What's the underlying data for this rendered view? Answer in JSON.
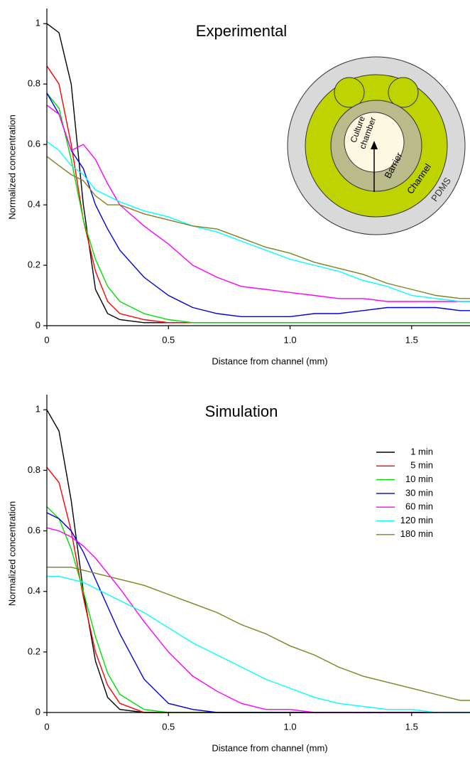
{
  "chart_data": [
    {
      "type": "line",
      "title": "Experimental",
      "xlabel": "Distance from channel (mm)",
      "ylabel": "Normalized concentration",
      "x": [
        0,
        0.05,
        0.1,
        0.15,
        0.2,
        0.25,
        0.3,
        0.4,
        0.5,
        0.6,
        0.7,
        0.8,
        0.9,
        1.0,
        1.1,
        1.2,
        1.3,
        1.4,
        1.5,
        1.6,
        1.7,
        1.74
      ],
      "xlim": [
        0,
        1.74
      ],
      "xticks": [
        0,
        0.5,
        {
          "value": 1.0,
          "label": "1.0"
        },
        1.5
      ],
      "ylim": [
        0,
        1.05
      ],
      "yticks": [
        0,
        0.2,
        0.4,
        0.6,
        0.8,
        1
      ],
      "inset": {
        "chamber": [
          "Culture",
          "chamber"
        ],
        "barrier": "Barrier",
        "channel": "Channel",
        "pdms": "PDMS"
      },
      "series": [
        {
          "color": "#000000",
          "values": [
            1.0,
            0.97,
            0.8,
            0.4,
            0.12,
            0.04,
            0.02,
            0.01,
            0.01,
            0.01,
            0.01,
            0.01,
            0.01,
            0.01,
            0.01,
            0.01,
            0.01,
            0.01,
            0.01,
            0.01,
            0.01,
            0.01
          ]
        },
        {
          "color": "#ff0000",
          "values": [
            0.86,
            0.8,
            0.6,
            0.35,
            0.18,
            0.08,
            0.04,
            0.02,
            0.01,
            0.01,
            0.01,
            0.01,
            0.01,
            0.01,
            0.01,
            0.01,
            0.01,
            0.01,
            0.01,
            0.01,
            0.01,
            0.01
          ]
        },
        {
          "color": "#00dd00",
          "values": [
            0.77,
            0.72,
            0.55,
            0.35,
            0.22,
            0.13,
            0.08,
            0.04,
            0.02,
            0.01,
            0.01,
            0.01,
            0.01,
            0.01,
            0.01,
            0.01,
            0.01,
            0.01,
            0.01,
            0.01,
            0.01,
            0.01
          ]
        },
        {
          "color": "#0000dd",
          "values": [
            0.77,
            0.7,
            0.58,
            0.52,
            0.4,
            0.32,
            0.25,
            0.16,
            0.1,
            0.06,
            0.04,
            0.03,
            0.03,
            0.03,
            0.04,
            0.04,
            0.05,
            0.06,
            0.06,
            0.06,
            0.05,
            0.05
          ]
        },
        {
          "color": "#ff00ff",
          "values": [
            0.73,
            0.7,
            0.58,
            0.6,
            0.55,
            0.47,
            0.4,
            0.33,
            0.27,
            0.2,
            0.16,
            0.13,
            0.12,
            0.11,
            0.1,
            0.09,
            0.09,
            0.08,
            0.08,
            0.08,
            0.08,
            0.08
          ]
        },
        {
          "color": "#00ffff",
          "values": [
            0.61,
            0.58,
            0.53,
            0.5,
            0.45,
            0.43,
            0.41,
            0.38,
            0.36,
            0.33,
            0.31,
            0.28,
            0.25,
            0.22,
            0.2,
            0.18,
            0.15,
            0.13,
            0.1,
            0.09,
            0.08,
            0.08
          ]
        },
        {
          "color": "#808020",
          "values": [
            0.56,
            0.53,
            0.5,
            0.48,
            0.43,
            0.4,
            0.4,
            0.37,
            0.35,
            0.33,
            0.32,
            0.29,
            0.26,
            0.24,
            0.21,
            0.19,
            0.17,
            0.14,
            0.12,
            0.1,
            0.09,
            0.09
          ]
        }
      ]
    },
    {
      "type": "line",
      "title": "Simulation",
      "xlabel": "Distance from channel (mm)",
      "ylabel": "Normalized concentration",
      "x": [
        0,
        0.05,
        0.1,
        0.15,
        0.2,
        0.25,
        0.3,
        0.4,
        0.5,
        0.6,
        0.7,
        0.8,
        0.9,
        1.0,
        1.1,
        1.2,
        1.3,
        1.4,
        1.5,
        1.6,
        1.7,
        1.74
      ],
      "xlim": [
        0,
        1.74
      ],
      "xticks": [
        0,
        0.5,
        {
          "value": 1.0,
          "label": "1.0"
        },
        1.5
      ],
      "ylim": [
        0,
        1.05
      ],
      "yticks": [
        0,
        0.2,
        0.4,
        0.6,
        0.8,
        1
      ],
      "legend": "upper right",
      "series": [
        {
          "name": "1 min",
          "color": "#000000",
          "values": [
            1.0,
            0.93,
            0.7,
            0.4,
            0.17,
            0.05,
            0.01,
            0,
            0,
            0,
            0,
            0,
            0,
            0,
            0,
            0,
            0,
            0,
            0,
            0,
            0,
            0
          ]
        },
        {
          "name": "5 min",
          "color": "#ff0000",
          "values": [
            0.81,
            0.76,
            0.6,
            0.38,
            0.2,
            0.09,
            0.03,
            0,
            0,
            0,
            0,
            0,
            0,
            0,
            0,
            0,
            0,
            0,
            0,
            0,
            0,
            0
          ]
        },
        {
          "name": "10 min",
          "color": "#00dd00",
          "values": [
            0.68,
            0.64,
            0.54,
            0.4,
            0.25,
            0.13,
            0.06,
            0.01,
            0,
            0,
            0,
            0,
            0,
            0,
            0,
            0,
            0,
            0,
            0,
            0,
            0,
            0
          ]
        },
        {
          "name": "30 min",
          "color": "#0000dd",
          "values": [
            0.66,
            0.64,
            0.6,
            0.53,
            0.44,
            0.35,
            0.26,
            0.11,
            0.03,
            0.01,
            0,
            0,
            0,
            0,
            0,
            0,
            0,
            0,
            0,
            0,
            0,
            0
          ]
        },
        {
          "name": "60 min",
          "color": "#ff00ff",
          "values": [
            0.61,
            0.6,
            0.58,
            0.55,
            0.51,
            0.46,
            0.41,
            0.3,
            0.2,
            0.12,
            0.07,
            0.03,
            0.01,
            0.01,
            0,
            0,
            0,
            0,
            0,
            0,
            0,
            0
          ]
        },
        {
          "name": "120 min",
          "color": "#00ffff",
          "values": [
            0.45,
            0.45,
            0.44,
            0.43,
            0.41,
            0.39,
            0.37,
            0.33,
            0.28,
            0.23,
            0.19,
            0.15,
            0.11,
            0.08,
            0.05,
            0.03,
            0.02,
            0.01,
            0.01,
            0,
            0,
            0
          ]
        },
        {
          "name": "180 min",
          "color": "#808020",
          "values": [
            0.48,
            0.48,
            0.48,
            0.47,
            0.46,
            0.45,
            0.44,
            0.42,
            0.39,
            0.36,
            0.33,
            0.29,
            0.26,
            0.22,
            0.19,
            0.15,
            0.12,
            0.1,
            0.08,
            0.06,
            0.04,
            0.04
          ]
        }
      ]
    }
  ]
}
